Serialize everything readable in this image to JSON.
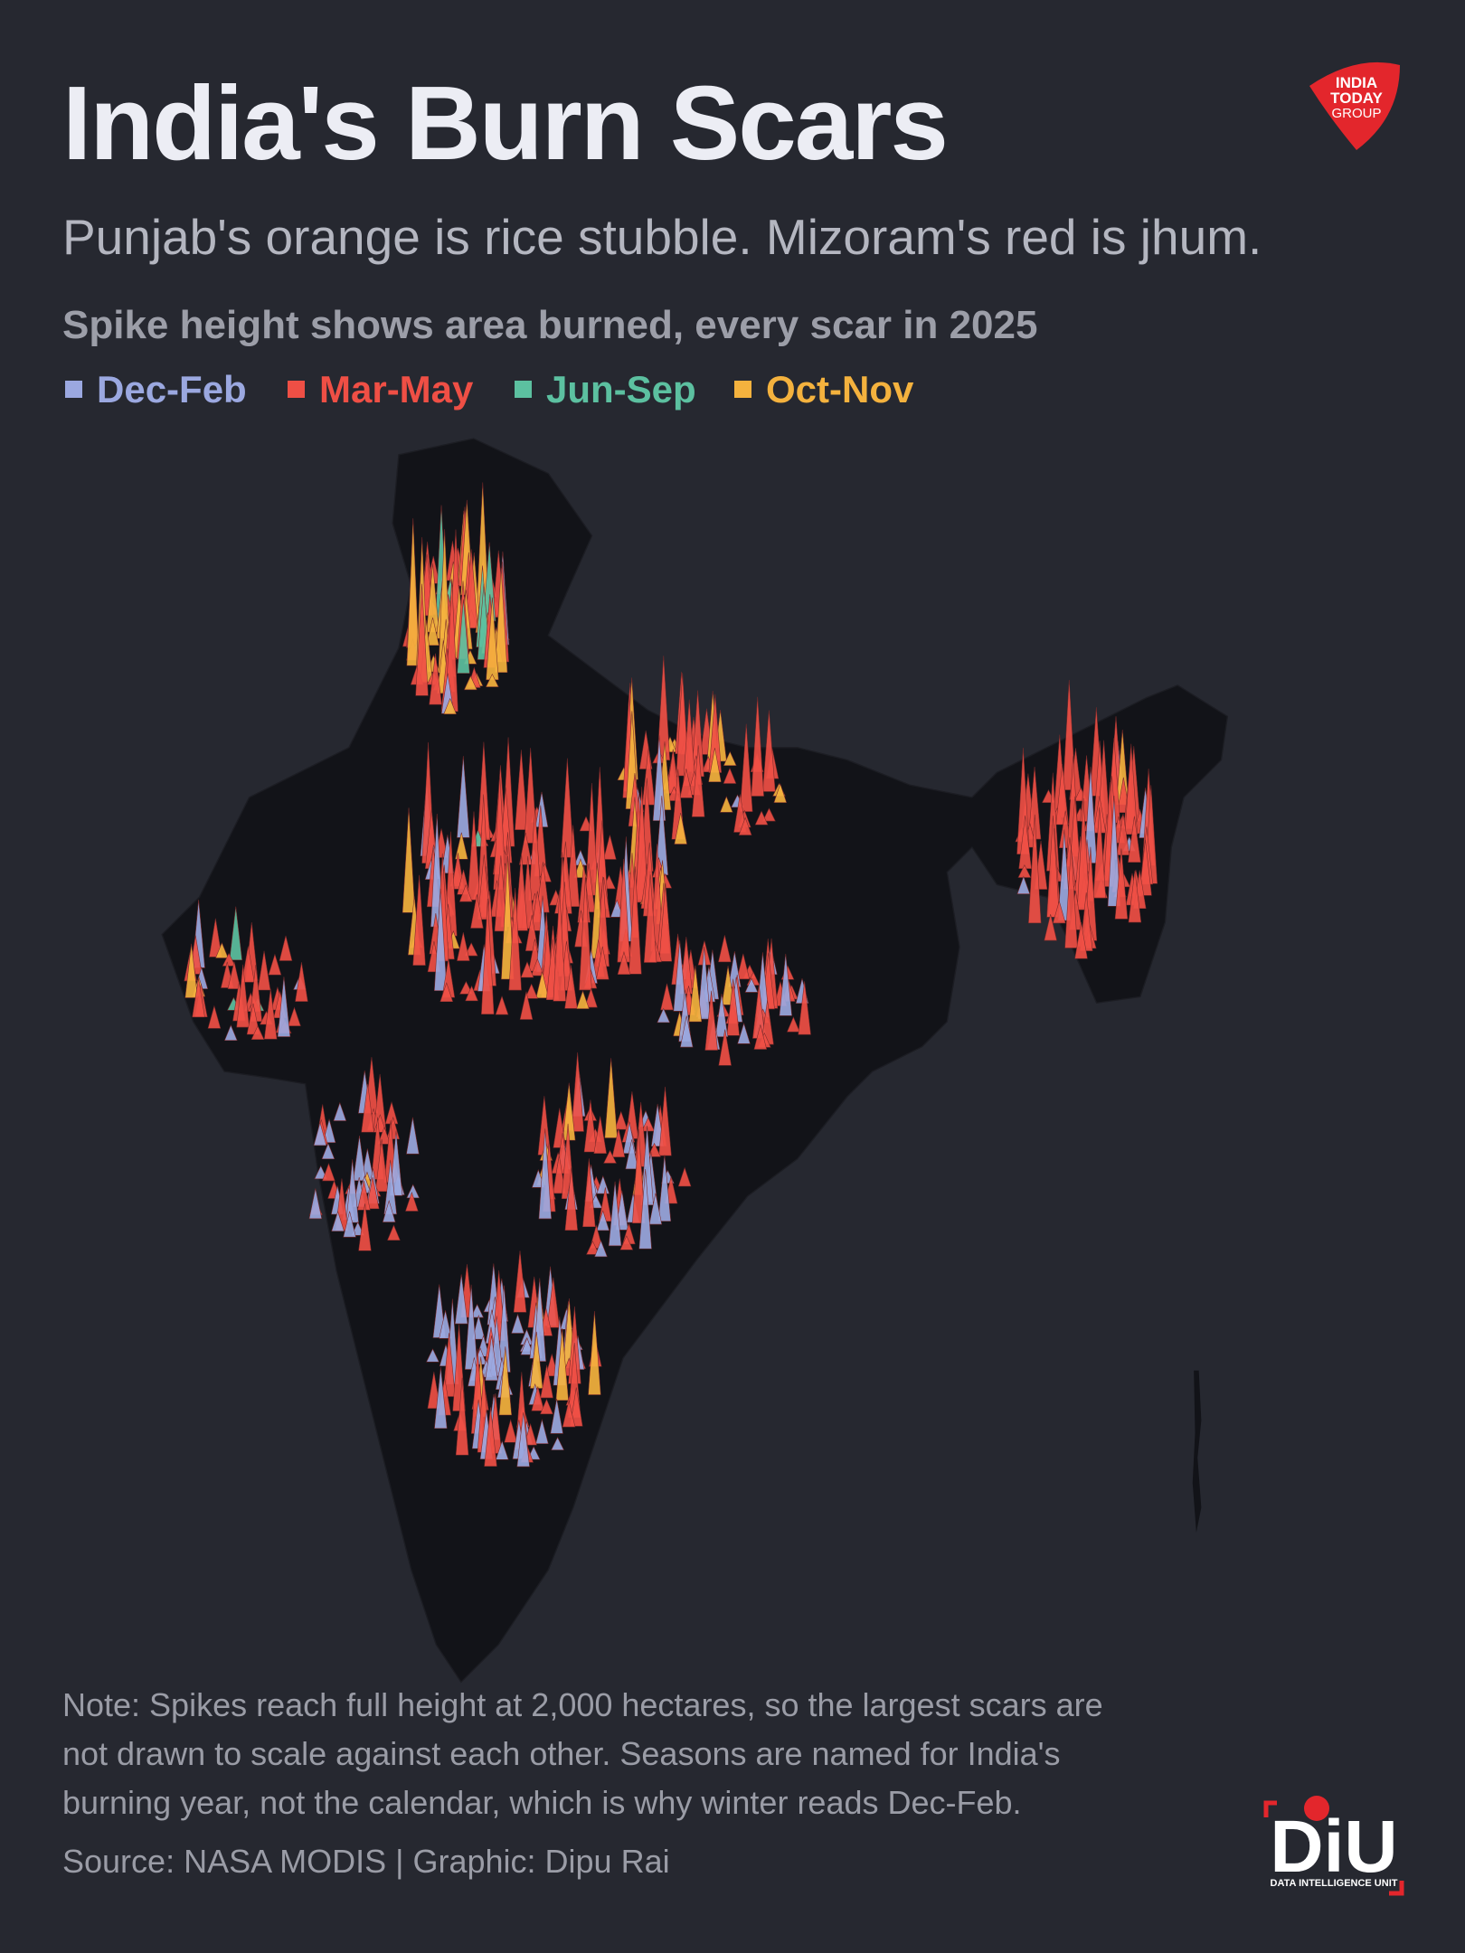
{
  "header": {
    "title": "India's Burn Scars",
    "subtitle": "Punjab's orange is rice stubble. Mizoram's red is jhum.",
    "description": "Spike height shows area burned, every scar in 2025"
  },
  "legend": [
    {
      "label": "Dec-Feb",
      "color": "#9ba8e0"
    },
    {
      "label": "Mar-May",
      "color": "#ef4f45"
    },
    {
      "label": "Jun-Sep",
      "color": "#5cc0a0"
    },
    {
      "label": "Oct-Nov",
      "color": "#f4b23e"
    }
  ],
  "footer": {
    "note": [
      "Note: Spikes reach full height at 2,000 hectares, so the largest scars are",
      "not drawn to scale against each other. Seasons are named for India's",
      "burning year, not the calendar, which is why winter reads Dec-Feb."
    ],
    "source": "Source: NASA MODIS | Graphic: Dipu Rai"
  },
  "logos": {
    "publisher": [
      "INDIA",
      "TODAY",
      "GROUP"
    ],
    "unit": "DiU",
    "unit_name": "DATA INTELLIGENCE UNIT"
  }
}
